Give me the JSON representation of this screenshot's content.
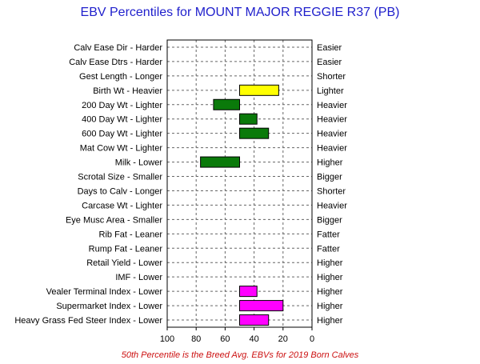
{
  "chart_data": {
    "type": "bar",
    "title": "EBV Percentiles for MOUNT MAJOR REGGIE R37 (PB)",
    "footnote": "50th Percentile is the Breed Avg. EBVs for 2019 Born Calves",
    "xlim": [
      100,
      0
    ],
    "x_ticks": [
      "100",
      "80",
      "60",
      "40",
      "20",
      "0"
    ],
    "grid": true,
    "baseline": 50,
    "traits": [
      {
        "left": "Calv Ease Dir - Harder",
        "right": "Easier",
        "percentile": null,
        "color": null
      },
      {
        "left": "Calv Ease Dtrs - Harder",
        "right": "Easier",
        "percentile": null,
        "color": null
      },
      {
        "left": "Gest Length - Longer",
        "right": "Shorter",
        "percentile": null,
        "color": null
      },
      {
        "left": "Birth Wt - Heavier",
        "right": "Lighter",
        "percentile": 23,
        "color": "#ffff00"
      },
      {
        "left": "200 Day Wt - Lighter",
        "right": "Heavier",
        "percentile": 68,
        "color": "#0a7a0a"
      },
      {
        "left": "400 Day Wt - Lighter",
        "right": "Heavier",
        "percentile": 38,
        "color": "#0a7a0a"
      },
      {
        "left": "600 Day Wt - Lighter",
        "right": "Heavier",
        "percentile": 30,
        "color": "#0a7a0a"
      },
      {
        "left": "Mat Cow Wt - Lighter",
        "right": "Heavier",
        "percentile": null,
        "color": null
      },
      {
        "left": "Milk - Lower",
        "right": "Higher",
        "percentile": 77,
        "color": "#0a7a0a"
      },
      {
        "left": "Scrotal Size - Smaller",
        "right": "Bigger",
        "percentile": null,
        "color": null
      },
      {
        "left": "Days to Calv - Longer",
        "right": "Shorter",
        "percentile": null,
        "color": null
      },
      {
        "left": "Carcase Wt - Lighter",
        "right": "Heavier",
        "percentile": null,
        "color": null
      },
      {
        "left": "Eye Musc Area - Smaller",
        "right": "Bigger",
        "percentile": null,
        "color": null
      },
      {
        "left": "Rib Fat - Leaner",
        "right": "Fatter",
        "percentile": null,
        "color": null
      },
      {
        "left": "Rump Fat - Leaner",
        "right": "Fatter",
        "percentile": null,
        "color": null
      },
      {
        "left": "Retail Yield - Lower",
        "right": "Higher",
        "percentile": null,
        "color": null
      },
      {
        "left": "IMF - Lower",
        "right": "Higher",
        "percentile": null,
        "color": null
      },
      {
        "left": "Vealer Terminal Index - Lower",
        "right": "Higher",
        "percentile": 38,
        "color": "#ff00ff"
      },
      {
        "left": "Supermarket Index - Lower",
        "right": "Higher",
        "percentile": 20,
        "color": "#ff00ff"
      },
      {
        "left": "Heavy Grass Fed Steer Index - Lower",
        "right": "Higher",
        "percentile": 30,
        "color": "#ff00ff"
      }
    ]
  }
}
